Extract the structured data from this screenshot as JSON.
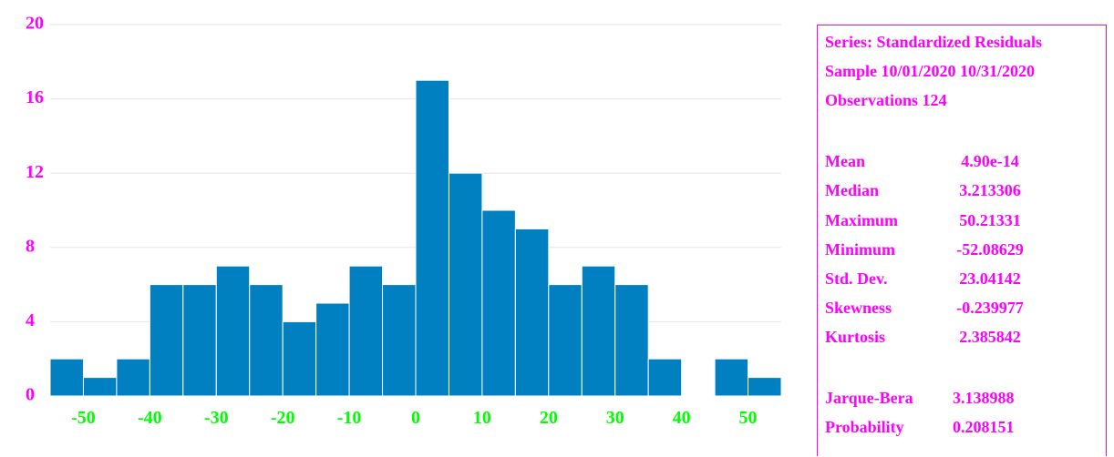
{
  "colors": {
    "bar": "#0080c0",
    "y_ticks": "#ff00ff",
    "x_ticks": "#00ff00",
    "stats_text": "#ff00ff"
  },
  "chart_data": {
    "type": "bar",
    "title": "",
    "xlabel": "",
    "ylabel": "",
    "bin_width": 5,
    "bins": [
      {
        "start": -55,
        "end": -50,
        "count": 2
      },
      {
        "start": -50,
        "end": -45,
        "count": 1
      },
      {
        "start": -45,
        "end": -40,
        "count": 2
      },
      {
        "start": -40,
        "end": -35,
        "count": 6
      },
      {
        "start": -35,
        "end": -30,
        "count": 6
      },
      {
        "start": -30,
        "end": -25,
        "count": 7
      },
      {
        "start": -25,
        "end": -20,
        "count": 6
      },
      {
        "start": -20,
        "end": -15,
        "count": 4
      },
      {
        "start": -15,
        "end": -10,
        "count": 5
      },
      {
        "start": -10,
        "end": -5,
        "count": 7
      },
      {
        "start": -5,
        "end": 0,
        "count": 6
      },
      {
        "start": 0,
        "end": 5,
        "count": 17
      },
      {
        "start": 5,
        "end": 10,
        "count": 12
      },
      {
        "start": 10,
        "end": 15,
        "count": 10
      },
      {
        "start": 15,
        "end": 20,
        "count": 9
      },
      {
        "start": 20,
        "end": 25,
        "count": 6
      },
      {
        "start": 25,
        "end": 30,
        "count": 7
      },
      {
        "start": 30,
        "end": 35,
        "count": 6
      },
      {
        "start": 35,
        "end": 40,
        "count": 2
      },
      {
        "start": 40,
        "end": 45,
        "count": 0
      },
      {
        "start": 45,
        "end": 50,
        "count": 2
      },
      {
        "start": 50,
        "end": 55,
        "count": 1
      }
    ],
    "xlim": [
      -55,
      55
    ],
    "ylim": [
      0,
      20
    ],
    "x_ticks": [
      -50,
      -40,
      -30,
      -20,
      -10,
      0,
      10,
      20,
      30,
      40,
      50
    ],
    "y_ticks": [
      0,
      4,
      8,
      12,
      16,
      20
    ],
    "grid": true,
    "legend": "none"
  },
  "stats": {
    "header": [
      "Series: Standardized Residuals",
      "Sample 10/01/2020 10/31/2020",
      "Observations 124"
    ],
    "rows": [
      {
        "label": "Mean",
        "value": "4.90e-14"
      },
      {
        "label": "Median",
        "value": "3.213306"
      },
      {
        "label": "Maximum",
        "value": "50.21331"
      },
      {
        "label": "Minimum",
        "value": "-52.08629"
      },
      {
        "label": "Std. Dev.",
        "value": "23.04142"
      },
      {
        "label": "Skewness",
        "value": "-0.239977"
      },
      {
        "label": "Kurtosis",
        "value": "2.385842"
      }
    ],
    "tests": [
      {
        "label": "Jarque-Bera",
        "value": "3.138988"
      },
      {
        "label": "Probability",
        "value": "0.208151"
      }
    ]
  }
}
